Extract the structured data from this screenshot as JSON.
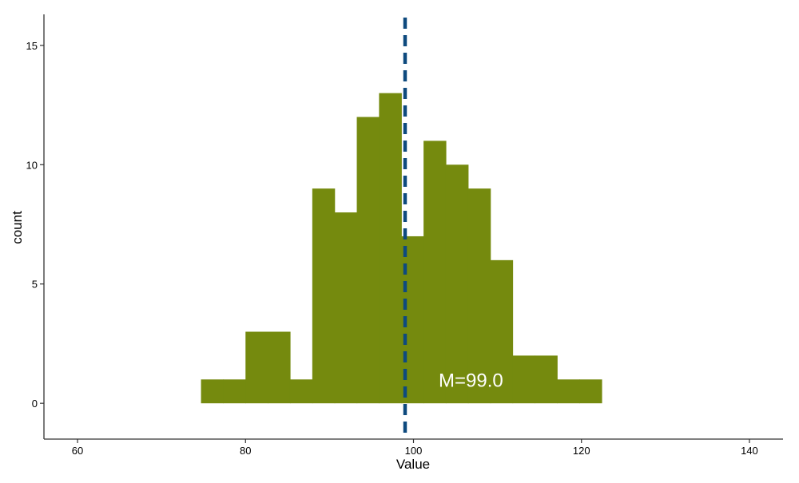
{
  "chart_data": {
    "type": "histogram",
    "title": "",
    "xlabel": "Value",
    "ylabel": "count",
    "xlim": [
      56.0,
      144.0
    ],
    "ylim": [
      -1.5,
      16.3
    ],
    "x_ticks": [
      60,
      80,
      100,
      120,
      140
    ],
    "y_ticks": [
      0,
      5,
      10,
      15
    ],
    "bins": [
      {
        "x0": 74.7,
        "x1": 77.35,
        "count": 1
      },
      {
        "x0": 77.35,
        "x1": 80.0,
        "count": 1
      },
      {
        "x0": 80.0,
        "x1": 82.65,
        "count": 3
      },
      {
        "x0": 82.65,
        "x1": 85.3,
        "count": 3
      },
      {
        "x0": 85.3,
        "x1": 87.95,
        "count": 1
      },
      {
        "x0": 87.95,
        "x1": 90.6,
        "count": 9
      },
      {
        "x0": 90.6,
        "x1": 93.25,
        "count": 8
      },
      {
        "x0": 93.25,
        "x1": 95.9,
        "count": 12
      },
      {
        "x0": 95.9,
        "x1": 98.55,
        "count": 13
      },
      {
        "x0": 98.55,
        "x1": 101.2,
        "count": 7
      },
      {
        "x0": 101.2,
        "x1": 103.85,
        "count": 11
      },
      {
        "x0": 103.85,
        "x1": 106.5,
        "count": 10
      },
      {
        "x0": 106.5,
        "x1": 109.15,
        "count": 9
      },
      {
        "x0": 109.15,
        "x1": 111.8,
        "count": 6
      },
      {
        "x0": 111.8,
        "x1": 114.45,
        "count": 2
      },
      {
        "x0": 114.45,
        "x1": 117.1,
        "count": 2
      },
      {
        "x0": 117.1,
        "x1": 119.75,
        "count": 1
      },
      {
        "x0": 119.75,
        "x1": 122.4,
        "count": 1
      }
    ],
    "bar_color": "#758a0e",
    "mean_line": {
      "value": 99.0,
      "color": "#0e4a7e",
      "style": "dashed"
    },
    "annotation": {
      "text": "M=99.0",
      "x": 103.0,
      "y": 1.0,
      "color": "#ffffff"
    },
    "grid": false,
    "legend": "none"
  }
}
